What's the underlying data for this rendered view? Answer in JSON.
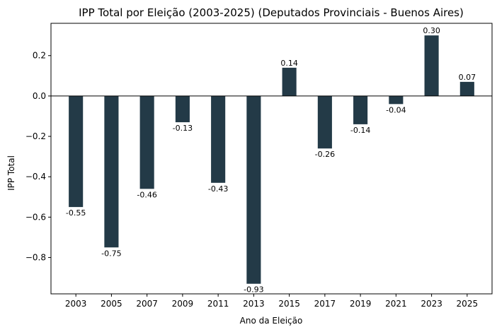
{
  "chart_data": {
    "type": "bar",
    "title": "IPP Total por Eleição (2003-2025) (Deputados Provinciais - Buenos Aires)",
    "xlabel": "Ano da Eleição",
    "ylabel": "IPP Total",
    "categories": [
      "2003",
      "2005",
      "2007",
      "2009",
      "2011",
      "2013",
      "2015",
      "2017",
      "2019",
      "2021",
      "2023",
      "2025"
    ],
    "values": [
      -0.55,
      -0.75,
      -0.46,
      -0.13,
      -0.43,
      -0.93,
      0.14,
      -0.26,
      -0.14,
      -0.04,
      0.3,
      0.07
    ],
    "value_labels": [
      "-0.55",
      "-0.75",
      "-0.46",
      "-0.13",
      "-0.43",
      "-0.93",
      "0.14",
      "-0.26",
      "-0.14",
      "-0.04",
      "0.30",
      "0.07"
    ],
    "ylim": [
      -0.98,
      0.36
    ],
    "yticks": [
      0.2,
      0.0,
      -0.2,
      -0.4,
      -0.6,
      -0.8
    ],
    "ytick_labels": [
      "0.2",
      "0.0",
      "−0.2",
      "−0.4",
      "−0.6",
      "−0.8"
    ],
    "bar_color": "#233a47",
    "zero_line": true,
    "grid": false
  }
}
